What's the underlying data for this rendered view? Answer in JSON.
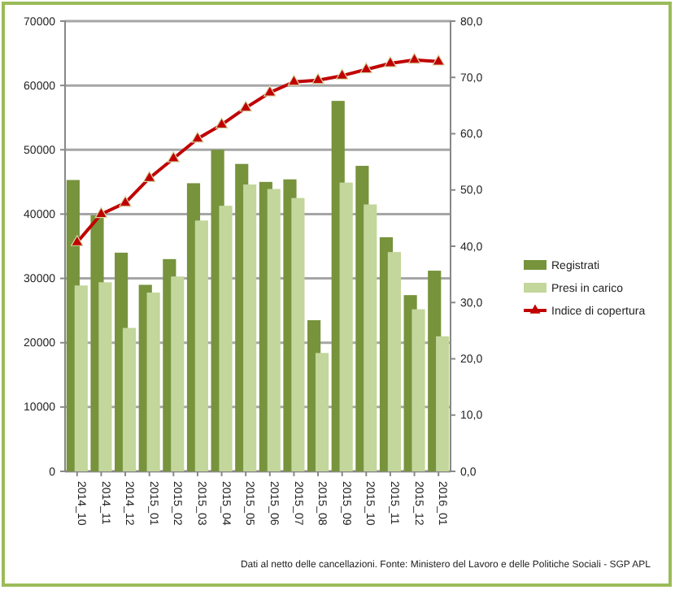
{
  "chart_data": {
    "type": "bar",
    "categories": [
      "2014_10",
      "2014_11",
      "2014_12",
      "2015_01",
      "2015_02",
      "2015_03",
      "2015_04",
      "2015_05",
      "2015_06",
      "2015_07",
      "2015_08",
      "2015_09",
      "2015_10",
      "2015_11",
      "2015_12",
      "2016_01"
    ],
    "series": [
      {
        "name": "Registrati",
        "color": "#77933c",
        "values": [
          45300,
          39800,
          34000,
          29000,
          33000,
          44800,
          50000,
          47800,
          45000,
          45400,
          23500,
          57600,
          47500,
          36400,
          27400,
          31200
        ]
      },
      {
        "name": "Presi in carico",
        "color": "#c3d69b",
        "values": [
          28900,
          29400,
          22300,
          27800,
          30300,
          39000,
          41300,
          44600,
          43900,
          42500,
          18400,
          44900,
          41500,
          34100,
          25200,
          21000
        ]
      },
      {
        "name": "Indice di copertura",
        "type": "line",
        "axis": "y2",
        "color": "#c00000",
        "marker": "triangle",
        "values": [
          40.7,
          45.7,
          47.7,
          52.1,
          55.6,
          59.1,
          61.6,
          64.6,
          67.3,
          69.2,
          69.5,
          70.3,
          71.4,
          72.5,
          73.1,
          72.8
        ]
      }
    ],
    "ylim": [
      0,
      70000
    ],
    "yticks": [
      0,
      10000,
      20000,
      30000,
      40000,
      50000,
      60000,
      70000
    ],
    "y2lim": [
      0,
      80
    ],
    "y2ticks": [
      {
        "value": 0,
        "label": "0,0"
      },
      {
        "value": 10,
        "label": "10,0"
      },
      {
        "value": 20,
        "label": "20,0"
      },
      {
        "value": 30,
        "label": "30,0"
      },
      {
        "value": 40,
        "label": "40,0"
      },
      {
        "value": 50,
        "label": "50,0"
      },
      {
        "value": 60,
        "label": "60,0"
      },
      {
        "value": 70,
        "label": "70,0"
      },
      {
        "value": 80,
        "label": "80,0"
      }
    ],
    "grid": "y",
    "legend": "right",
    "annotations": [
      "Dati al netto delle cancellazioni. Fonte: Ministero del Lavoro e delle Politiche Sociali - SGP APL"
    ]
  }
}
